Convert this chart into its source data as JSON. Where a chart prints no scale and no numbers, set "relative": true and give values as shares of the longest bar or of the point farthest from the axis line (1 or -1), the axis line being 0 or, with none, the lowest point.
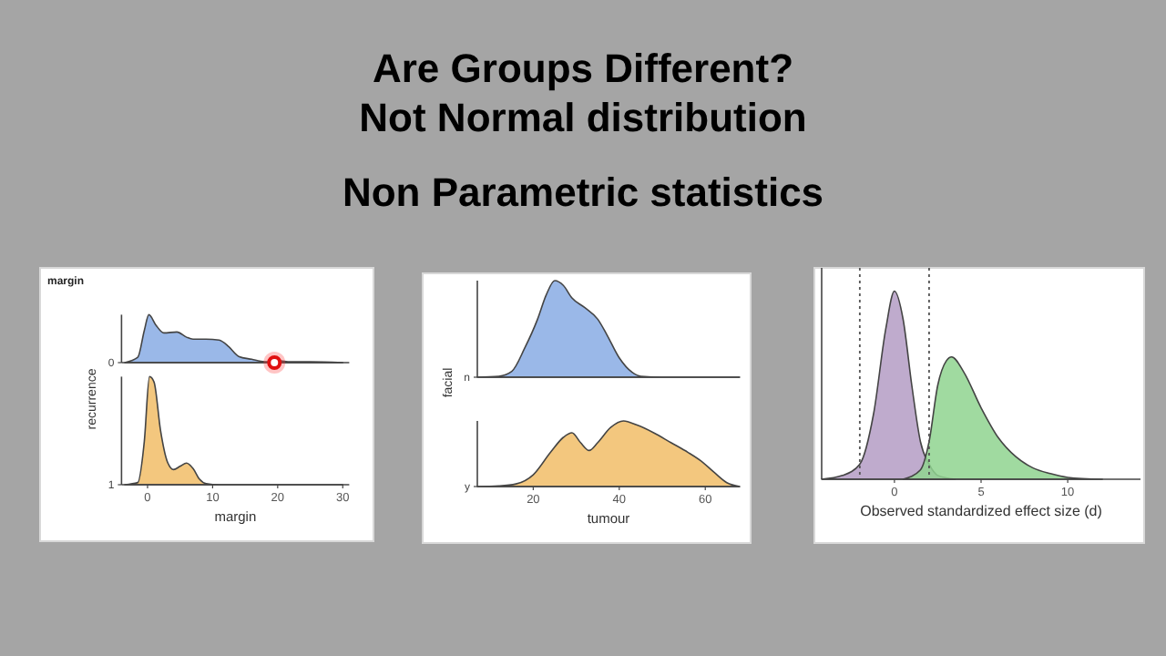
{
  "chart_data": [
    {
      "type": "other",
      "title": "Are Groups Different?",
      "subtitle": "Not Normal distribution",
      "annotations": [
        "Non Parametric statistics"
      ]
    },
    {
      "type": "area",
      "title": "margin",
      "relative": true,
      "xlim": [
        -4,
        31
      ],
      "tick_labels": false,
      "series": [
        {
          "name": "0",
          "color": "#9ab8e8",
          "x": [
            -3.5,
            -1.5,
            -0.5,
            0.2,
            1.3,
            2.5,
            4.5,
            6,
            7,
            9,
            11,
            12.5,
            14,
            16,
            18,
            20,
            22,
            25,
            30
          ],
          "values": [
            0,
            0.11,
            0.67,
            1,
            0.78,
            0.62,
            0.64,
            0.53,
            0.49,
            0.49,
            0.47,
            0.33,
            0.13,
            0.07,
            0.02,
            0.04,
            0.02,
            0.02,
            0
          ]
        }
      ]
    },
    {
      "type": "area",
      "xlabel": "margin",
      "ylabel": "recurrence",
      "relative": true,
      "xlim": [
        -4,
        31
      ],
      "xticks": [
        0,
        10,
        20,
        30
      ],
      "tick_labels": "x",
      "series": [
        {
          "name": "1",
          "color": "#f3c77e",
          "x": [
            -3.5,
            -1.5,
            -0.5,
            0.3,
            1,
            2,
            3,
            4,
            5,
            6,
            7,
            8,
            9,
            11,
            30
          ],
          "values": [
            0,
            0.02,
            0.4,
            1,
            0.95,
            0.5,
            0.22,
            0.14,
            0.17,
            0.2,
            0.15,
            0.05,
            0.01,
            0,
            0
          ]
        }
      ]
    },
    {
      "type": "area",
      "relative": true,
      "xlim": [
        7,
        68
      ],
      "tick_labels": false,
      "series": [
        {
          "name": "n",
          "color": "#9ab8e8",
          "x": [
            7,
            12,
            15,
            18,
            21,
            23,
            25,
            27,
            29,
            32,
            35,
            37,
            40,
            43,
            45,
            50,
            68
          ],
          "values": [
            0,
            0.01,
            0.06,
            0.3,
            0.6,
            0.85,
            1,
            0.95,
            0.82,
            0.72,
            0.6,
            0.45,
            0.2,
            0.05,
            0.01,
            0,
            0
          ]
        }
      ]
    },
    {
      "type": "area",
      "xlabel": "tumour",
      "ylabel": "facial",
      "relative": true,
      "xlim": [
        7,
        68
      ],
      "xticks": [
        20,
        40,
        60
      ],
      "tick_labels": "x",
      "series": [
        {
          "name": "y",
          "color": "#f3c77e",
          "x": [
            7,
            12,
            16,
            20,
            24,
            27,
            29,
            31,
            33,
            35,
            38,
            41,
            44,
            48,
            52,
            56,
            59,
            62,
            65,
            68
          ],
          "values": [
            0,
            0.01,
            0.04,
            0.18,
            0.52,
            0.75,
            0.82,
            0.67,
            0.55,
            0.67,
            0.9,
            1,
            0.94,
            0.82,
            0.67,
            0.52,
            0.39,
            0.22,
            0.06,
            0
          ]
        }
      ]
    },
    {
      "type": "area",
      "xlabel": "Observed standardized effect size (d)",
      "relative": true,
      "xlim": [
        -4.2,
        14.2
      ],
      "xticks": [
        0,
        5,
        10
      ],
      "ref_lines": [
        {
          "axis": "x",
          "value": -2,
          "line_style": "dotted"
        },
        {
          "axis": "x",
          "value": 2,
          "line_style": "dotted"
        }
      ],
      "series": [
        {
          "color": "#b49cc4",
          "x": [
            -4.2,
            -3,
            -2,
            -1.2,
            -0.5,
            0,
            0.5,
            1,
            1.5,
            2,
            2.5,
            3.5
          ],
          "values": [
            0,
            0.02,
            0.08,
            0.35,
            0.8,
            1,
            0.85,
            0.5,
            0.2,
            0.08,
            0.02,
            0
          ]
        },
        {
          "color": "#8fd38f",
          "x": [
            0.5,
            1.5,
            2,
            2.5,
            3,
            3.3,
            4,
            5,
            6,
            7,
            8,
            9,
            10,
            12
          ],
          "values": [
            0,
            0.05,
            0.2,
            0.5,
            0.63,
            0.65,
            0.57,
            0.38,
            0.22,
            0.12,
            0.06,
            0.03,
            0.01,
            0
          ]
        }
      ]
    }
  ]
}
